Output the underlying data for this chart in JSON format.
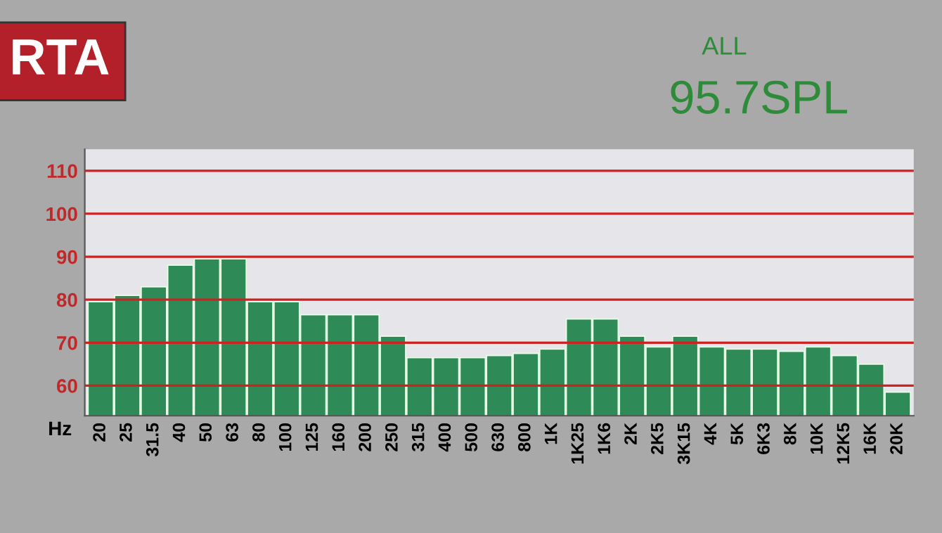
{
  "chart_data": {
    "type": "bar",
    "title": "RTA",
    "xlabel": "Hz",
    "annotations": [
      "ALL",
      "95.7SPL"
    ],
    "categories": [
      "20",
      "25",
      "31.5",
      "40",
      "50",
      "63",
      "80",
      "100",
      "125",
      "160",
      "200",
      "250",
      "315",
      "400",
      "500",
      "630",
      "800",
      "1K",
      "1K25",
      "1K6",
      "2K",
      "2K5",
      "3K15",
      "4K",
      "5K",
      "6K3",
      "8K",
      "10K",
      "12K5",
      "16K",
      "20K"
    ],
    "values": [
      79.5,
      81,
      83,
      88,
      89.5,
      89.5,
      79.5,
      79.5,
      76.5,
      76.5,
      76.5,
      71.5,
      66.5,
      66.5,
      66.5,
      67,
      67.5,
      68.5,
      75.5,
      75.5,
      71.5,
      69,
      71.5,
      69,
      68.5,
      68.5,
      68,
      69,
      67,
      65,
      58.5
    ],
    "color": "#2e8b57",
    "ylim": [
      53,
      115
    ],
    "yticks": [
      60,
      70,
      80,
      90,
      100,
      110
    ],
    "grid": "y"
  }
}
